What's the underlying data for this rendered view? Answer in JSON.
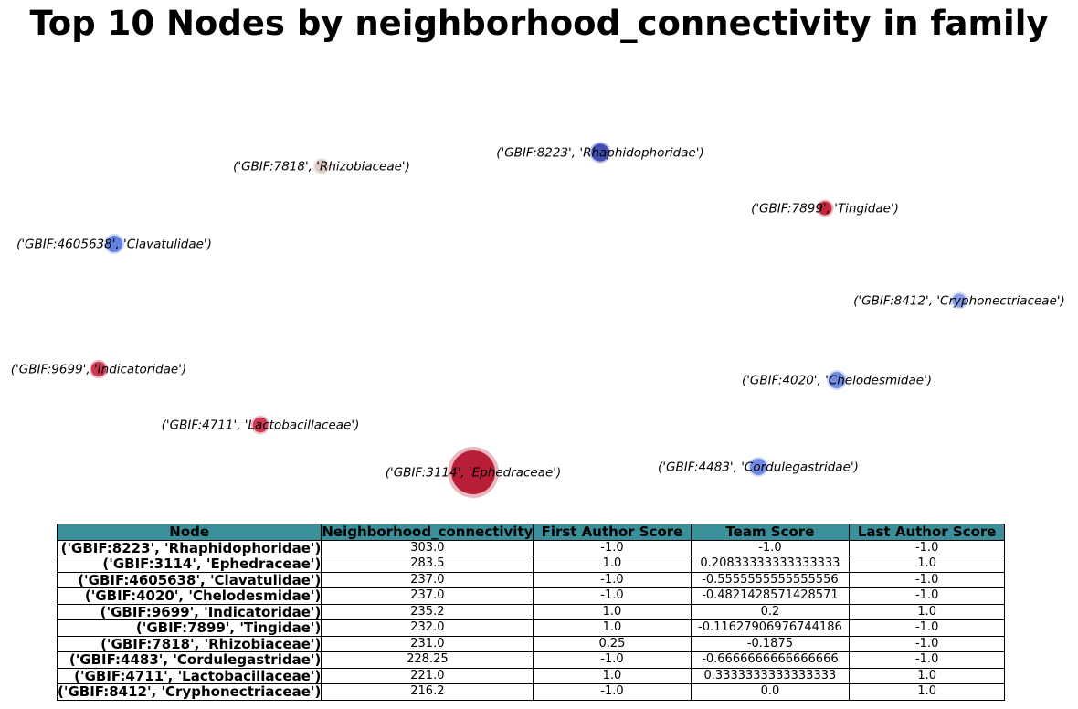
{
  "title": "Top 10 Nodes by neighborhood_connectivity in family",
  "chart_data": {
    "type": "scatter",
    "nodes": [
      {
        "label": "('GBIF:7818', 'Rhizobiaceae')",
        "color": "#ddc7c0",
        "size": 1
      },
      {
        "label": "('GBIF:8223', 'Rhaphidophoridae')",
        "color": "#3b48b0",
        "size": 1.3
      },
      {
        "label": "('GBIF:7899', 'Tingidae')",
        "color": "#c0213a",
        "size": 1
      },
      {
        "label": "('GBIF:4605638', 'Clavatulidae')",
        "color": "#5e7be0",
        "size": 1.2
      },
      {
        "label": "('GBIF:8412', 'Cryphonectriaceae')",
        "color": "#8097e6",
        "size": 1
      },
      {
        "label": "('GBIF:9699', 'Indicatoridae')",
        "color": "#c8334a",
        "size": 1.1
      },
      {
        "label": "('GBIF:4020', 'Chelodesmidae')",
        "color": "#6b86e2",
        "size": 1.2
      },
      {
        "label": "('GBIF:4711', 'Lactobacillaceae')",
        "color": "#c8334a",
        "size": 1.1
      },
      {
        "label": "('GBIF:3114', 'Ephedraceae')",
        "color": "#b5152f",
        "size": 3.2
      },
      {
        "label": "('GBIF:4483', 'Cordulegastridae')",
        "color": "#6b86e2",
        "size": 1.2
      }
    ],
    "table": {
      "columns": [
        "Node",
        "Neighborhood_connectivity",
        "First Author Score",
        "Team Score",
        "Last Author Score"
      ],
      "rows": [
        [
          "('GBIF:8223', 'Rhaphidophoridae')",
          "303.0",
          "-1.0",
          "-1.0",
          "-1.0"
        ],
        [
          "('GBIF:3114', 'Ephedraceae')",
          "283.5",
          "1.0",
          "0.20833333333333333",
          "1.0"
        ],
        [
          "('GBIF:4605638', 'Clavatulidae')",
          "237.0",
          "-1.0",
          "-0.5555555555555556",
          "-1.0"
        ],
        [
          "('GBIF:4020', 'Chelodesmidae')",
          "237.0",
          "-1.0",
          "-0.4821428571428571",
          "-1.0"
        ],
        [
          "('GBIF:9699', 'Indicatoridae')",
          "235.2",
          "1.0",
          "0.2",
          "1.0"
        ],
        [
          "('GBIF:7899', 'Tingidae')",
          "232.0",
          "1.0",
          "-0.11627906976744186",
          "-1.0"
        ],
        [
          "('GBIF:7818', 'Rhizobiaceae')",
          "231.0",
          "0.25",
          "-0.1875",
          "-1.0"
        ],
        [
          "('GBIF:4483', 'Cordulegastridae')",
          "228.25",
          "-1.0",
          "-0.6666666666666666",
          "-1.0"
        ],
        [
          "('GBIF:4711', 'Lactobacillaceae')",
          "221.0",
          "1.0",
          "0.3333333333333333",
          "1.0"
        ],
        [
          "('GBIF:8412', 'Cryphonectriaceae')",
          "216.2",
          "-1.0",
          "0.0",
          "1.0"
        ]
      ]
    }
  }
}
